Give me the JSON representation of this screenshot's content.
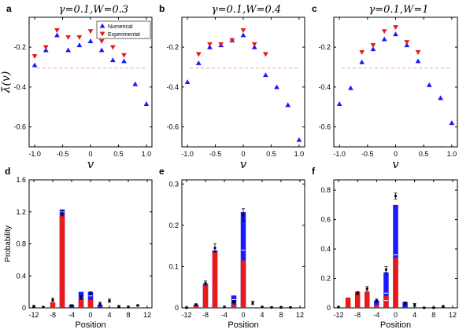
{
  "chart_data": [
    {
      "panel": "a",
      "type": "scatter",
      "title": "γ=0.1,W=0.3",
      "xlabel": "v",
      "ylabel": "λ̄(v)",
      "xlim": [
        -1.1,
        1.1
      ],
      "ylim": [
        -0.7,
        -0.05
      ],
      "xticks": [
        "-1.0",
        "-0.5",
        "0",
        "0.5",
        "1.0"
      ],
      "xtick_values": [
        -1,
        -0.5,
        0,
        0.5,
        1
      ],
      "yticks": [
        "-0.2",
        "-0.4",
        "-0.6"
      ],
      "ytick_values": [
        -0.2,
        -0.4,
        -0.6
      ],
      "legend": {
        "position": "top-right",
        "entries": [
          "Numerical",
          "Experimental"
        ]
      },
      "reference_line": -0.305,
      "series": [
        {
          "name": "Numerical",
          "color": "#1a1aff",
          "marker": "triangle-up",
          "x": [
            -1,
            -0.8,
            -0.6,
            -0.4,
            -0.2,
            0,
            0.2,
            0.4,
            0.6,
            0.8,
            1.0
          ],
          "y": [
            -0.29,
            -0.215,
            -0.14,
            -0.215,
            -0.19,
            -0.17,
            -0.215,
            -0.265,
            -0.27,
            -0.385,
            -0.485
          ]
        },
        {
          "name": "Experimental",
          "color": "#e81a1a",
          "marker": "triangle-down",
          "x": [
            -1,
            -0.8,
            -0.6,
            -0.4,
            -0.2,
            0,
            0.2,
            0.4,
            0.6
          ],
          "y": [
            -0.245,
            -0.2,
            -0.115,
            -0.15,
            -0.15,
            -0.12,
            -0.17,
            -0.2,
            -0.24
          ]
        }
      ]
    },
    {
      "panel": "b",
      "type": "scatter",
      "title": "γ=0.1,W=0.4",
      "xlabel": "v",
      "xlim": [
        -1.1,
        1.1
      ],
      "ylim": [
        -0.7,
        -0.05
      ],
      "xticks": [
        "-1.0",
        "-0.5",
        "0",
        "0.5",
        "1.0"
      ],
      "xtick_values": [
        -1,
        -0.5,
        0,
        0.5,
        1
      ],
      "yticks": [
        "-0.2",
        "-0.4",
        "-0.6"
      ],
      "ytick_values": [
        -0.2,
        -0.4,
        -0.6
      ],
      "reference_line": -0.305,
      "series": [
        {
          "name": "Numerical",
          "color": "#1a1aff",
          "marker": "triangle-up",
          "x": [
            -1,
            -0.8,
            -0.6,
            -0.4,
            -0.2,
            0,
            0.2,
            0.4,
            0.6,
            0.8,
            1.0
          ],
          "y": [
            -0.375,
            -0.28,
            -0.2,
            -0.19,
            -0.165,
            -0.14,
            -0.2,
            -0.34,
            -0.4,
            -0.49,
            -0.665
          ]
        },
        {
          "name": "Experimental",
          "color": "#e81a1a",
          "marker": "triangle-down",
          "x": [
            -0.8,
            -0.6,
            -0.4,
            -0.2,
            0,
            0.2,
            0.4
          ],
          "y": [
            -0.235,
            -0.185,
            -0.185,
            -0.165,
            -0.115,
            -0.185,
            -0.235
          ]
        }
      ]
    },
    {
      "panel": "c",
      "type": "scatter",
      "title": "γ=0.1,W=1",
      "xlabel": "v",
      "xlim": [
        -1.1,
        1.1
      ],
      "ylim": [
        -0.7,
        -0.05
      ],
      "xticks": [
        "-1.0",
        "-0.5",
        "0",
        "0.5",
        "1.0"
      ],
      "xtick_values": [
        -1,
        -0.5,
        0,
        0.5,
        1
      ],
      "yticks": [
        "-0.2",
        "-0.4",
        "-0.6"
      ],
      "ytick_values": [
        -0.2,
        -0.4,
        -0.6
      ],
      "reference_line": -0.305,
      "series": [
        {
          "name": "Numerical",
          "color": "#1a1aff",
          "marker": "triangle-up",
          "x": [
            -1,
            -0.8,
            -0.6,
            -0.4,
            -0.2,
            0,
            0.2,
            0.4,
            0.6,
            0.8,
            1.0
          ],
          "y": [
            -0.485,
            -0.405,
            -0.275,
            -0.21,
            -0.16,
            -0.135,
            -0.19,
            -0.27,
            -0.39,
            -0.455,
            -0.58
          ]
        },
        {
          "name": "Experimental",
          "color": "#e81a1a",
          "marker": "triangle-down",
          "x": [
            -0.6,
            -0.4,
            -0.2,
            0,
            0.2,
            0.4
          ],
          "y": [
            -0.225,
            -0.19,
            -0.12,
            -0.1,
            -0.175,
            -0.225
          ]
        }
      ]
    },
    {
      "panel": "d",
      "type": "bar",
      "xlabel": "Position",
      "ylabel": "Probability",
      "xlim": [
        -13,
        13
      ],
      "ylim": [
        0,
        1.6
      ],
      "xticks": [
        "-12",
        "-8",
        "-4",
        "0",
        "4",
        "8",
        "12"
      ],
      "xtick_values": [
        -12,
        -8,
        -4,
        0,
        4,
        8,
        12
      ],
      "yticks": [
        "0",
        "0.4",
        "0.8",
        "1.2",
        "1.6"
      ],
      "ytick_values": [
        0,
        0.4,
        0.8,
        1.2,
        1.6
      ],
      "red": [
        {
          "x": -8,
          "v": 0.07
        },
        {
          "x": -6,
          "v": 1.16
        },
        {
          "x": -2,
          "v": 0.1
        },
        {
          "x": 0,
          "v": 0.1
        }
      ],
      "blue": [
        {
          "x": -6,
          "v": 1.23
        },
        {
          "x": -4,
          "v": 0.04
        },
        {
          "x": -2,
          "v": 0.2
        },
        {
          "x": 0,
          "v": 0.2
        },
        {
          "x": 2,
          "v": 0.04
        }
      ],
      "exp": [
        {
          "x": -12,
          "v": 0.02,
          "e": 0.01
        },
        {
          "x": -10,
          "v": 0.01,
          "e": 0.01
        },
        {
          "x": -8,
          "v": 0.1,
          "e": 0.02
        },
        {
          "x": -6,
          "v": 1.18,
          "e": 0.03
        },
        {
          "x": -4,
          "v": 0.03,
          "e": 0.01
        },
        {
          "x": -2,
          "v": 0.13,
          "e": 0.02
        },
        {
          "x": 0,
          "v": 0.18,
          "e": 0.02
        },
        {
          "x": 2,
          "v": 0.05,
          "e": 0.02
        },
        {
          "x": 4,
          "v": 0.09,
          "e": 0.02
        },
        {
          "x": 6,
          "v": 0.02,
          "e": 0.01
        },
        {
          "x": 8,
          "v": 0.01,
          "e": 0.01
        },
        {
          "x": 10,
          "v": 0.03,
          "e": 0.01
        }
      ],
      "numhat": [
        {
          "x": -6,
          "v": 1.2
        },
        {
          "x": -2,
          "v": 0.13
        },
        {
          "x": 0,
          "v": 0.15
        }
      ]
    },
    {
      "panel": "e",
      "type": "bar",
      "xlabel": "Position",
      "xlim": [
        -13,
        13
      ],
      "ylim": [
        0,
        0.31
      ],
      "xticks": [
        "-12",
        "-8",
        "-4",
        "0",
        "4",
        "8",
        "12"
      ],
      "xtick_values": [
        -12,
        -8,
        -4,
        0,
        4,
        8,
        12
      ],
      "yticks": [
        "0",
        "0.1",
        "0.2",
        "0.3"
      ],
      "ytick_values": [
        0,
        0.1,
        0.2,
        0.3
      ],
      "red": [
        {
          "x": -10,
          "v": 0.005
        },
        {
          "x": -8,
          "v": 0.055
        },
        {
          "x": -6,
          "v": 0.135
        },
        {
          "x": -2,
          "v": 0.008
        },
        {
          "x": 0,
          "v": 0.115
        }
      ],
      "blue": [
        {
          "x": -10,
          "v": 0.008
        },
        {
          "x": -8,
          "v": 0.06
        },
        {
          "x": -6,
          "v": 0.14
        },
        {
          "x": -2,
          "v": 0.03
        },
        {
          "x": 0,
          "v": 0.232
        }
      ],
      "exp": [
        {
          "x": -12,
          "v": 0.0,
          "e": 0.002
        },
        {
          "x": -10,
          "v": 0.008,
          "e": 0.002
        },
        {
          "x": -8,
          "v": 0.06,
          "e": 0.005
        },
        {
          "x": -6,
          "v": 0.145,
          "e": 0.01
        },
        {
          "x": -4,
          "v": 0.002,
          "e": 0.002
        },
        {
          "x": -2,
          "v": 0.015,
          "e": 0.003
        },
        {
          "x": 0,
          "v": 0.225,
          "e": 0.015
        },
        {
          "x": 2,
          "v": 0.012,
          "e": 0.004
        },
        {
          "x": 4,
          "v": 0.002,
          "e": 0.002
        },
        {
          "x": 6,
          "v": 0.001,
          "e": 0.002
        },
        {
          "x": 8,
          "v": 0.001,
          "e": 0.002
        },
        {
          "x": 10,
          "v": 0.001,
          "e": 0.002
        }
      ],
      "numhat": [
        {
          "x": -8,
          "v": 0.058
        },
        {
          "x": -6,
          "v": 0.14
        },
        {
          "x": -2,
          "v": 0.02
        },
        {
          "x": 0,
          "v": 0.14
        }
      ]
    },
    {
      "panel": "f",
      "type": "bar",
      "xlabel": "Position",
      "xlim": [
        -13,
        13
      ],
      "ylim": [
        0,
        0.87
      ],
      "xticks": [
        "-12",
        "-8",
        "-4",
        "0",
        "4",
        "8",
        "12"
      ],
      "xtick_values": [
        -12,
        -8,
        -4,
        0,
        4,
        8,
        12
      ],
      "yticks": [
        "0",
        "0.2",
        "0.4",
        "0.6",
        "0.8"
      ],
      "ytick_values": [
        0,
        0.2,
        0.4,
        0.6,
        0.8
      ],
      "red": [
        {
          "x": -10,
          "v": 0.07
        },
        {
          "x": -8,
          "v": 0.11
        },
        {
          "x": -6,
          "v": 0.11
        },
        {
          "x": -4,
          "v": 0.02
        },
        {
          "x": -2,
          "v": 0.08
        },
        {
          "x": 0,
          "v": 0.34
        }
      ],
      "blue": [
        {
          "x": -4,
          "v": 0.05
        },
        {
          "x": -2,
          "v": 0.24
        },
        {
          "x": 0,
          "v": 0.7
        },
        {
          "x": 2,
          "v": 0.04
        }
      ],
      "exp": [
        {
          "x": -12,
          "v": 0.005,
          "e": 0.005
        },
        {
          "x": -8,
          "v": 0.1,
          "e": 0.01
        },
        {
          "x": -6,
          "v": 0.13,
          "e": 0.015
        },
        {
          "x": -4,
          "v": 0.05,
          "e": 0.01
        },
        {
          "x": -2,
          "v": 0.26,
          "e": 0.02
        },
        {
          "x": 0,
          "v": 0.76,
          "e": 0.02
        },
        {
          "x": 2,
          "v": 0.03,
          "e": 0.01
        },
        {
          "x": 4,
          "v": 0.02,
          "e": 0.01
        },
        {
          "x": 6,
          "v": 0.0,
          "e": 0.005
        },
        {
          "x": 8,
          "v": 0.0,
          "e": 0.005
        },
        {
          "x": 10,
          "v": 0.01,
          "e": 0.005
        }
      ],
      "numhat": [
        {
          "x": -2,
          "v": 0.05
        },
        {
          "x": -2,
          "v": 0.1
        },
        {
          "x": 0,
          "v": 0.36
        }
      ]
    }
  ],
  "colors": {
    "numerical": "#1a1aff",
    "experimental": "#e81a1a",
    "reference_line": "#f4a0a0"
  }
}
